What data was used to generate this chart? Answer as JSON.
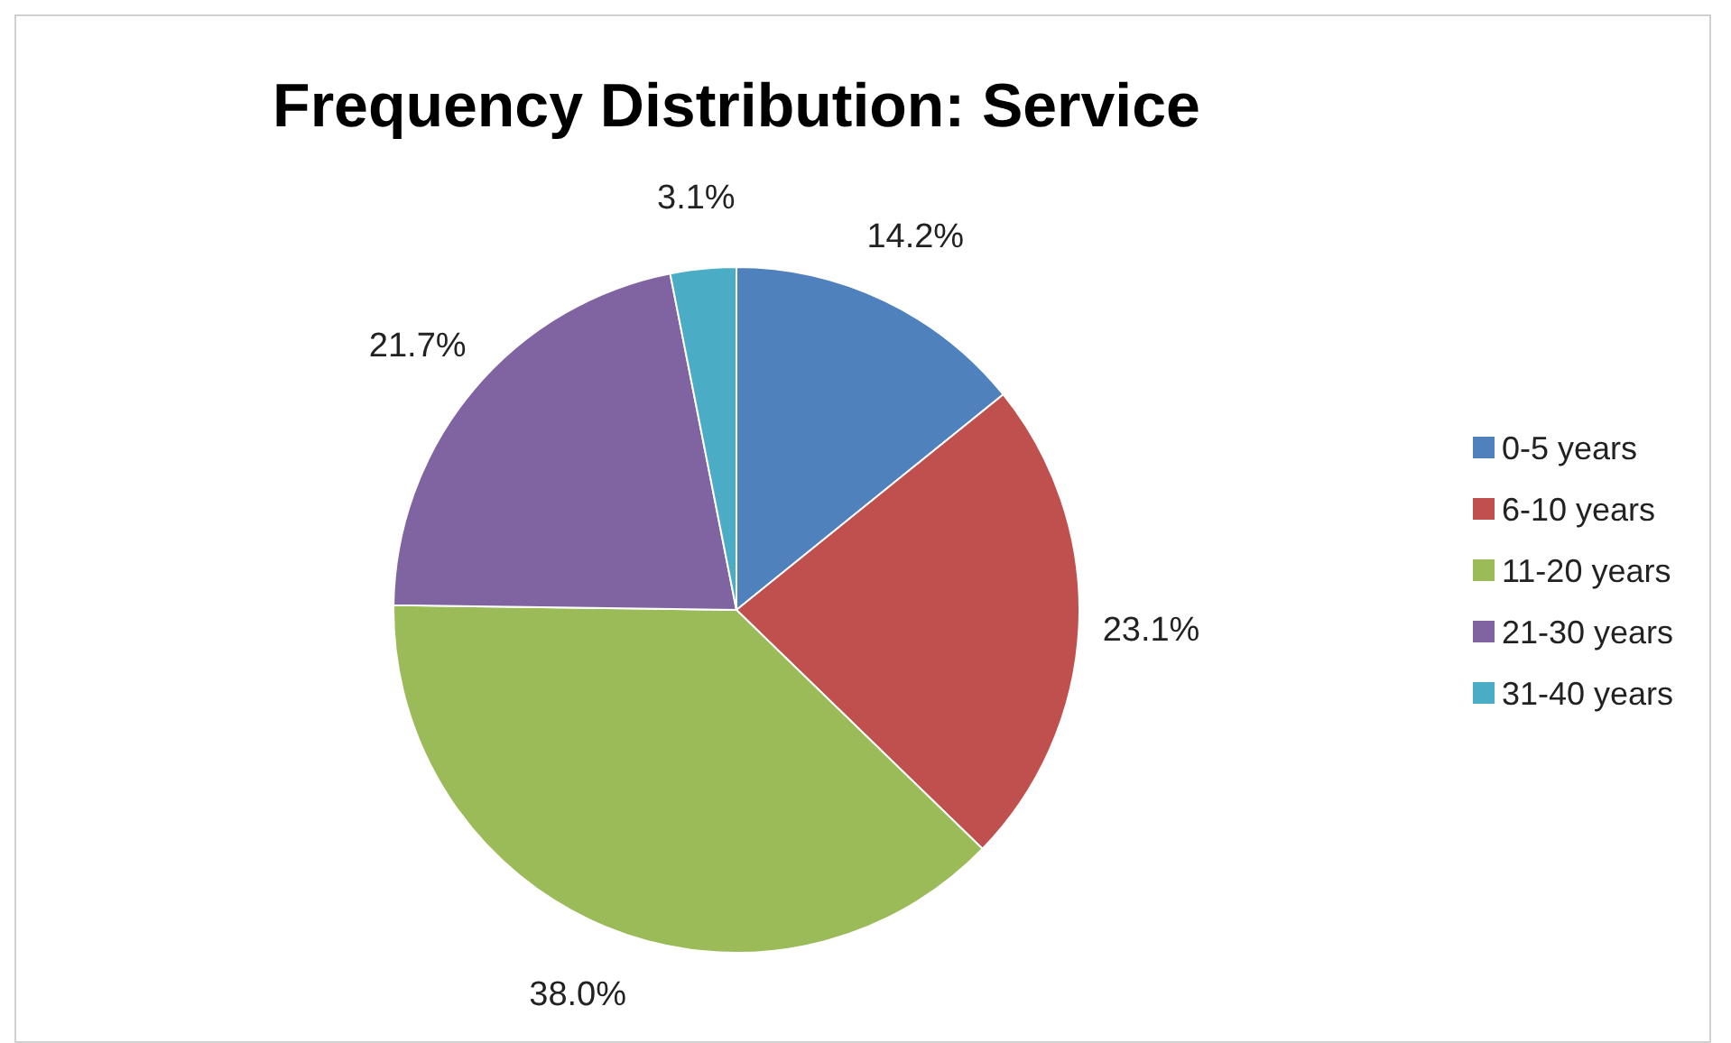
{
  "chart_data": {
    "type": "pie",
    "title": "Frequency Distribution: Service",
    "categories": [
      "0-5 years",
      "6-10 years",
      "11-20 years",
      "21-30 years",
      "31-40 years"
    ],
    "values": [
      14.2,
      23.1,
      38.0,
      21.7,
      3.1
    ],
    "colors": [
      "#4f81bd",
      "#c0504d",
      "#9bbb59",
      "#8064a2",
      "#4bacc6"
    ],
    "value_labels": [
      "14.2%",
      "23.1%",
      "38.0%",
      "21.7%",
      "3.1%"
    ],
    "legend": "right"
  }
}
